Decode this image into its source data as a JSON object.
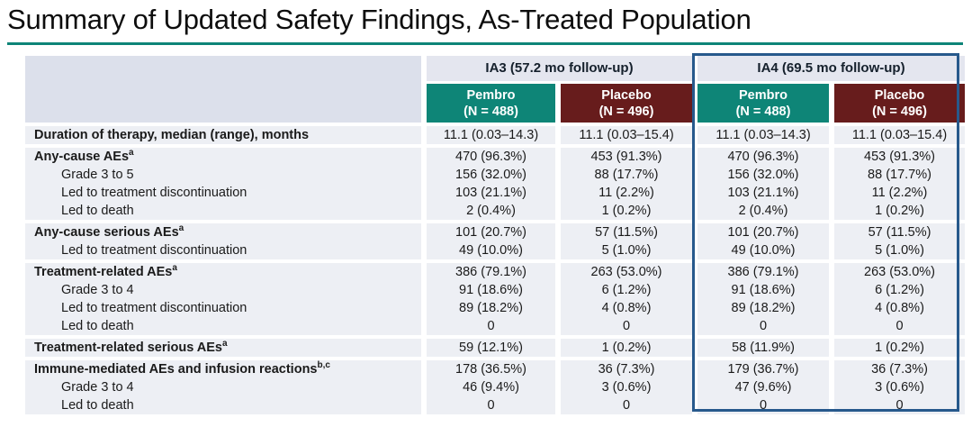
{
  "title": "Summary of Updated Safety Findings, As-Treated Population",
  "colors": {
    "pembro_header": "#0e8577",
    "placebo_header": "#671c1c",
    "group_header_bg": "#e4e6ef",
    "corner_cell_bg": "#dce0eb",
    "row_bg": "#edeff4",
    "ia4_highlight_border": "#27598c",
    "title_underline": "#0e8478"
  },
  "table": {
    "col_groups": [
      {
        "label": "IA3 (57.2 mo follow-up)",
        "highlighted": false
      },
      {
        "label": "IA4 (69.5 mo follow-up)",
        "highlighted": true
      }
    ],
    "sub_columns": [
      {
        "label": "Pembro",
        "n": "(N = 488)",
        "arm": "pembro"
      },
      {
        "label": "Placebo",
        "n": "(N = 496)",
        "arm": "placebo"
      },
      {
        "label": "Pembro",
        "n": "(N = 488)",
        "arm": "pembro"
      },
      {
        "label": "Placebo",
        "n": "(N = 496)",
        "arm": "placebo"
      }
    ],
    "row_groups": [
      {
        "rows": [
          {
            "label": "Duration of therapy, median (range), months",
            "sup": "",
            "indent": false,
            "values": [
              "11.1 (0.03–14.3)",
              "11.1 (0.03–15.4)",
              "11.1 (0.03–14.3)",
              "11.1 (0.03–15.4)"
            ]
          }
        ]
      },
      {
        "rows": [
          {
            "label": "Any-cause AEs",
            "sup": "a",
            "indent": false,
            "values": [
              "470 (96.3%)",
              "453 (91.3%)",
              "470 (96.3%)",
              "453 (91.3%)"
            ]
          },
          {
            "label": "Grade 3 to 5",
            "sup": "",
            "indent": true,
            "values": [
              "156 (32.0%)",
              "88 (17.7%)",
              "156 (32.0%)",
              "88 (17.7%)"
            ]
          },
          {
            "label": "Led to treatment discontinuation",
            "sup": "",
            "indent": true,
            "values": [
              "103 (21.1%)",
              "11 (2.2%)",
              "103 (21.1%)",
              "11 (2.2%)"
            ]
          },
          {
            "label": "Led to death",
            "sup": "",
            "indent": true,
            "values": [
              "2 (0.4%)",
              "1 (0.2%)",
              "2 (0.4%)",
              "1 (0.2%)"
            ]
          }
        ]
      },
      {
        "rows": [
          {
            "label": "Any-cause serious AEs",
            "sup": "a",
            "indent": false,
            "values": [
              "101 (20.7%)",
              "57 (11.5%)",
              "101 (20.7%)",
              "57 (11.5%)"
            ]
          },
          {
            "label": "Led to treatment discontinuation",
            "sup": "",
            "indent": true,
            "values": [
              "49 (10.0%)",
              "5 (1.0%)",
              "49 (10.0%)",
              "5 (1.0%)"
            ]
          }
        ]
      },
      {
        "rows": [
          {
            "label": "Treatment-related AEs",
            "sup": "a",
            "indent": false,
            "values": [
              "386 (79.1%)",
              "263 (53.0%)",
              "386 (79.1%)",
              "263 (53.0%)"
            ]
          },
          {
            "label": "Grade 3 to 4",
            "sup": "",
            "indent": true,
            "values": [
              "91 (18.6%)",
              "6 (1.2%)",
              "91 (18.6%)",
              "6 (1.2%)"
            ]
          },
          {
            "label": "Led to treatment discontinuation",
            "sup": "",
            "indent": true,
            "values": [
              "89 (18.2%)",
              "4 (0.8%)",
              "89 (18.2%)",
              "4 (0.8%)"
            ]
          },
          {
            "label": "Led to death",
            "sup": "",
            "indent": true,
            "values": [
              "0",
              "0",
              "0",
              "0"
            ]
          }
        ]
      },
      {
        "rows": [
          {
            "label": "Treatment-related serious AEs",
            "sup": "a",
            "indent": false,
            "values": [
              "59 (12.1%)",
              "1 (0.2%)",
              "58 (11.9%)",
              "1 (0.2%)"
            ]
          }
        ]
      },
      {
        "rows": [
          {
            "label": "Immune-mediated AEs and infusion reactions",
            "sup": "b,c",
            "indent": false,
            "values": [
              "178 (36.5%)",
              "36 (7.3%)",
              "179 (36.7%)",
              "36 (7.3%)"
            ]
          },
          {
            "label": "Grade 3 to 4",
            "sup": "",
            "indent": true,
            "values": [
              "46 (9.4%)",
              "3 (0.6%)",
              "47 (9.6%)",
              "3 (0.6%)"
            ]
          },
          {
            "label": "Led to death",
            "sup": "",
            "indent": true,
            "values": [
              "0",
              "0",
              "0",
              "0"
            ]
          }
        ]
      }
    ]
  }
}
